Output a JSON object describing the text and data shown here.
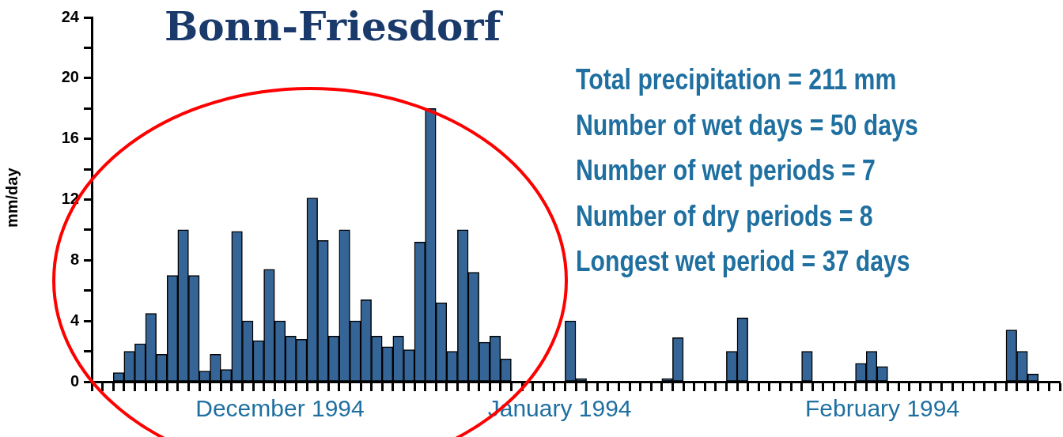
{
  "chart_data": {
    "type": "bar",
    "title": "Bonn-Friesdorf",
    "ylabel": "mm/day",
    "categories": [
      null,
      null,
      null,
      null,
      null,
      null,
      null,
      null,
      null,
      null,
      null,
      null,
      null,
      null,
      null,
      null,
      null,
      "December 1994",
      null,
      null,
      null,
      null,
      null,
      null,
      null,
      null,
      null,
      null,
      null,
      null,
      null,
      null,
      null,
      null,
      null,
      null,
      null,
      null,
      null,
      null,
      null,
      null,
      null,
      "January 1994",
      null,
      null,
      null,
      null,
      null,
      null,
      null,
      null,
      null,
      null,
      null,
      null,
      null,
      null,
      null,
      null,
      null,
      null,
      null,
      null,
      null,
      null,
      null,
      null,
      null,
      null,
      null,
      null,
      null,
      "February 1994",
      null,
      null,
      null,
      null,
      null,
      null,
      null,
      null,
      null,
      null,
      null,
      null,
      null,
      null,
      null,
      null
    ],
    "values": [
      0,
      0,
      0.6,
      2.0,
      2.5,
      4.5,
      1.8,
      7.0,
      10.0,
      7.0,
      0.7,
      1.8,
      0.8,
      9.9,
      4.0,
      2.7,
      7.4,
      4.0,
      3.0,
      2.8,
      12.1,
      9.3,
      3.0,
      10.0,
      4.0,
      5.4,
      3.0,
      2.3,
      3.0,
      2.1,
      9.2,
      18.0,
      5.2,
      2.0,
      10.0,
      7.2,
      2.6,
      3.0,
      1.5,
      0,
      0,
      0,
      0,
      0,
      4.0,
      0.2,
      0,
      0,
      0,
      0,
      0,
      0,
      0,
      0.2,
      2.9,
      0,
      0,
      0,
      0,
      2.0,
      4.2,
      0,
      0,
      0,
      0,
      0,
      2.0,
      0,
      0,
      0,
      0,
      1.2,
      2.0,
      1.0,
      0,
      0,
      0,
      0,
      0,
      0,
      0,
      0,
      0,
      0,
      0,
      3.4,
      2.0,
      0.5,
      0,
      0
    ],
    "color": "#356597",
    "ylim": [
      0,
      24
    ],
    "yticks": [
      0,
      {
        "value": 2,
        "label": null
      },
      4,
      {
        "value": 6,
        "label": null
      },
      8,
      {
        "value": 10,
        "label": null
      },
      12,
      {
        "value": 14,
        "label": null
      },
      16,
      {
        "value": 18,
        "label": null
      },
      20,
      {
        "value": 22,
        "label": null
      },
      24
    ],
    "grid": false,
    "legend": false,
    "annotations": [
      "Total precipitation = 211 mm",
      "Number of wet days = 50 days",
      "Number of wet periods = 7",
      "Number of dry periods = 8",
      "Longest wet period = 37 days"
    ]
  }
}
